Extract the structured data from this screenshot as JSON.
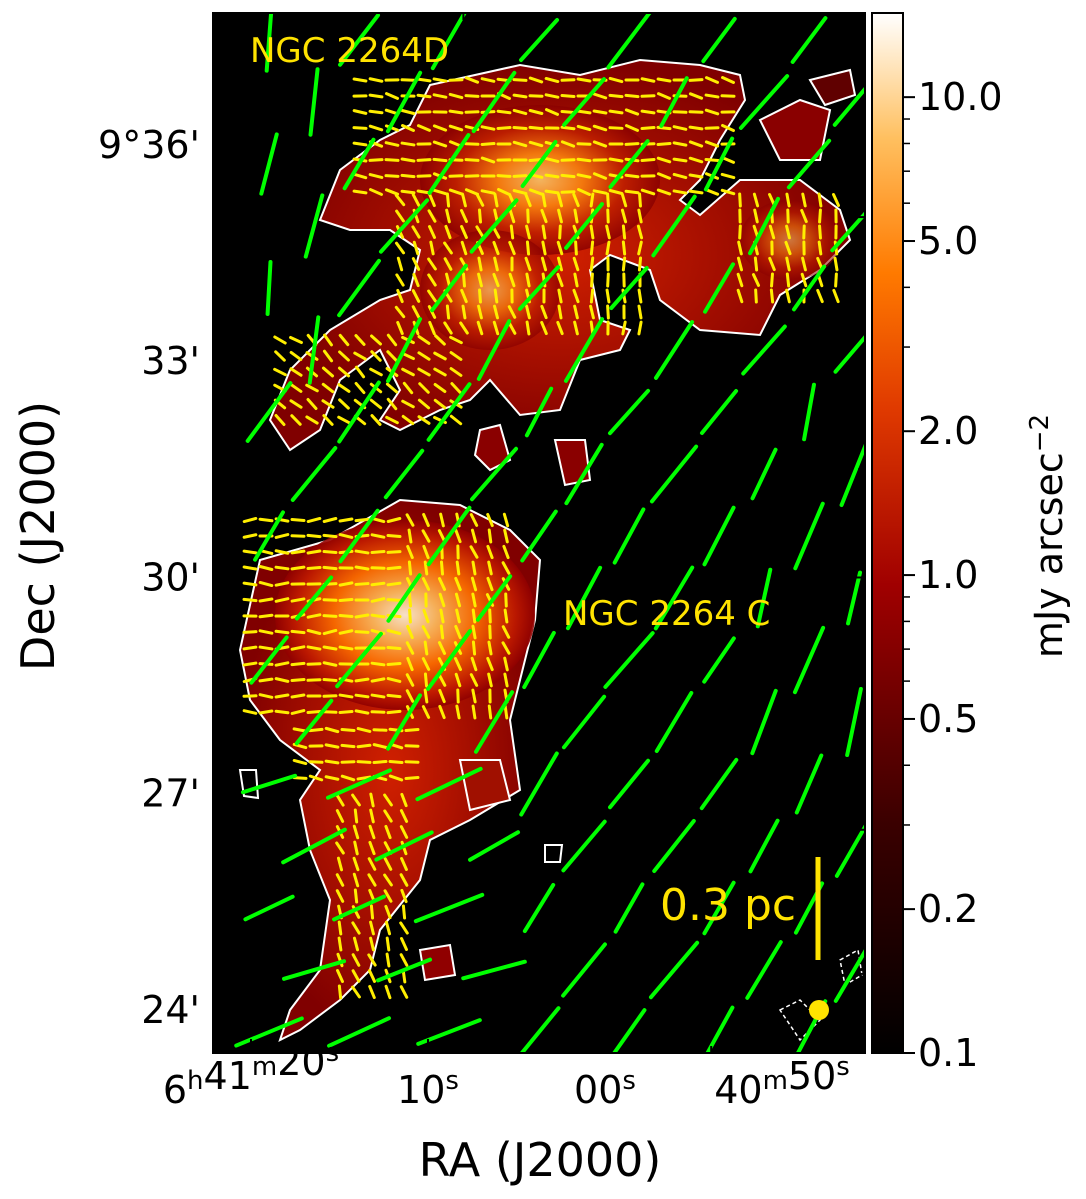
{
  "chart_data": {
    "type": "heatmap",
    "title": "",
    "xlabel": "RA (J2000)",
    "ylabel": "Dec (J2000)",
    "x_axis": {
      "scale": "linear (RA, decreasing to the right)",
      "ticks": [
        {
          "ra_seconds": 20,
          "h": "6",
          "h_unit": "h",
          "m": "41",
          "m_unit": "m",
          "s": "20",
          "s_unit": "s"
        },
        {
          "ra_seconds": 10,
          "h": "",
          "h_unit": "",
          "m": "",
          "m_unit": "",
          "s": "10",
          "s_unit": "s"
        },
        {
          "ra_seconds": 0,
          "h": "",
          "h_unit": "",
          "m": "",
          "m_unit": "",
          "s": "00",
          "s_unit": "s"
        },
        {
          "ra_seconds": -10,
          "h": "",
          "h_unit": "",
          "m": "40",
          "m_unit": "m",
          "s": "50",
          "s_unit": "s"
        }
      ]
    },
    "y_axis": {
      "scale": "linear (Dec, arcmin)",
      "ticks": [
        {
          "arcmin": 36,
          "label": "9°36'"
        },
        {
          "arcmin": 33,
          "label": "33'"
        },
        {
          "arcmin": 30,
          "label": "30'"
        },
        {
          "arcmin": 27,
          "label": "27'"
        },
        {
          "arcmin": 24,
          "label": "24'"
        }
      ]
    },
    "colorbar": {
      "label_main": "mJy arcsec",
      "label_exp": "−2",
      "scale": "log",
      "range": [
        0.1,
        15
      ],
      "ticks": [
        "10.0",
        "5.0",
        "2.0",
        "1.0",
        "0.5",
        "0.2",
        "0.1"
      ],
      "cmap": "afmhot"
    },
    "annotations": {
      "region_north": "NGC 2264D",
      "region_south": "NGC 2264 C",
      "scale_bar": "0.3 pc"
    },
    "colors": {
      "large_scale_vectors": "#00ff00",
      "core_vectors": "#ffee00",
      "contour": "#ffffff",
      "background": "#000000"
    }
  }
}
